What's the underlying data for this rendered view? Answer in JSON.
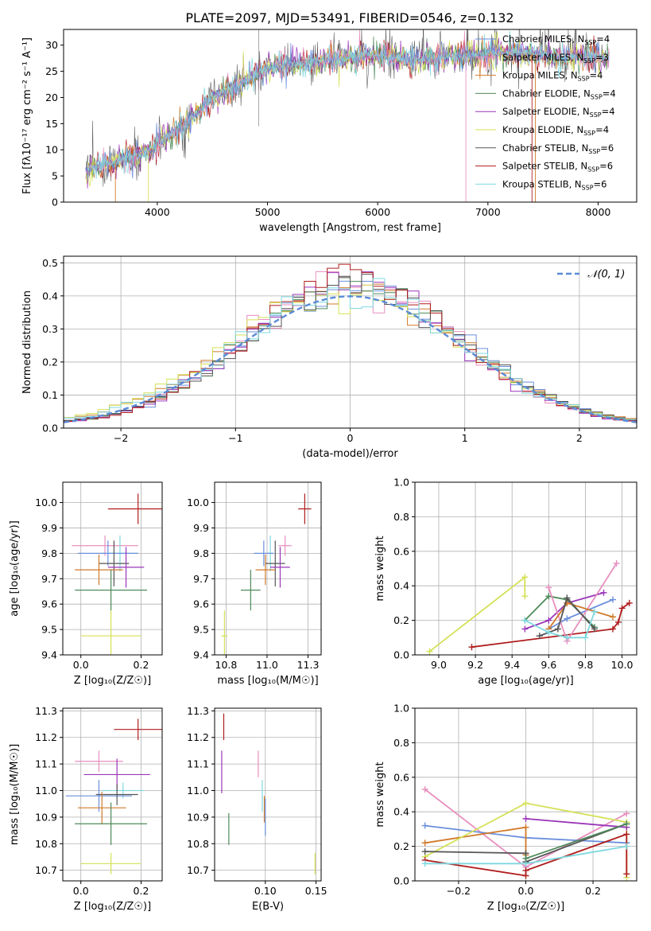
{
  "figure_title": "PLATE=2097, MJD=53491, FIBERID=0546, z=0.132",
  "legend_entries": [
    {
      "label": "Chabrier MILES, N_SSP=4",
      "color": "#6a8fdc"
    },
    {
      "label": "Salpeter MILES, N_SSP=3",
      "color": "#e88fbf"
    },
    {
      "label": "Kroupa MILES, N_SSP=4",
      "color": "#d07a2a"
    },
    {
      "label": "Chabrier ELODIE, N_SSP=4",
      "color": "#4e8a5a"
    },
    {
      "label": "Salpeter ELODIE, N_SSP=4",
      "color": "#9a35b8"
    },
    {
      "label": "Kroupa ELODIE, N_SSP=4",
      "color": "#d4e157"
    },
    {
      "label": "Chabrier STELIB, N_SSP=6",
      "color": "#555555"
    },
    {
      "label": "Salpeter STELIB, N_SSP=6",
      "color": "#b01c1c"
    },
    {
      "label": "Kroupa STELIB, N_SSP=6",
      "color": "#7fd8e0"
    }
  ],
  "chart_data": [
    {
      "id": "spectrum",
      "type": "line",
      "xlabel": "wavelength [Angstrom, rest frame]",
      "ylabel": "Flux [fλ10⁻¹⁷ erg cm⁻² s⁻¹ A⁻¹]",
      "xlim": [
        3150,
        8350
      ],
      "ylim": [
        0,
        33
      ],
      "xticks": [
        4000,
        5000,
        6000,
        7000,
        8000
      ],
      "yticks": [
        0,
        5,
        10,
        15,
        20,
        25,
        30
      ],
      "grid": false,
      "legend": "top-right",
      "continuum": [
        [
          3350,
          6.5
        ],
        [
          3600,
          7.5
        ],
        [
          3800,
          9
        ],
        [
          3950,
          10
        ],
        [
          4050,
          12
        ],
        [
          4200,
          14
        ],
        [
          4350,
          17
        ],
        [
          4500,
          20
        ],
        [
          4700,
          22
        ],
        [
          4900,
          24.5
        ],
        [
          5100,
          26
        ],
        [
          5300,
          26.5
        ],
        [
          5500,
          27
        ],
        [
          5700,
          27.5
        ],
        [
          5900,
          28
        ],
        [
          6100,
          28
        ],
        [
          6300,
          27
        ],
        [
          6500,
          27.5
        ],
        [
          6700,
          28
        ],
        [
          6900,
          28
        ],
        [
          7100,
          28.5
        ],
        [
          7300,
          28.5
        ],
        [
          7500,
          28
        ],
        [
          7700,
          27.5
        ],
        [
          7900,
          28
        ],
        [
          8100,
          27.5
        ]
      ],
      "fit_range": [
        3350,
        8100
      ]
    },
    {
      "id": "residual-histogram",
      "type": "bar",
      "xlabel": "(data-model)/error",
      "ylabel": "Normed distribution",
      "xlim": [
        -2.5,
        2.5
      ],
      "ylim": [
        0,
        0.52
      ],
      "xticks": [
        -2,
        -1,
        0,
        1,
        2
      ],
      "yticks": [
        0.0,
        0.1,
        0.2,
        0.3,
        0.4,
        0.5
      ],
      "grid": true,
      "legend": "top-right",
      "reference_curve": {
        "label": "𝒩(0, 1)",
        "mean": 0,
        "sigma": 1,
        "color": "#5b8bd6"
      },
      "bin_width": 0.1,
      "n_histograms": 9
    },
    {
      "id": "age-vs-metallicity",
      "type": "scatter",
      "xlabel": "Z [log₁₀(Z/Z☉)]",
      "ylabel": "age  [log₁₀(age/yr)]",
      "xlim": [
        -0.06,
        0.27
      ],
      "ylim": [
        9.4,
        10.08
      ],
      "xticks": [
        0.0,
        0.2
      ],
      "yticks": [
        9.4,
        9.5,
        9.6,
        9.7,
        9.8,
        9.9,
        10.0
      ],
      "grid": true,
      "points": [
        {
          "x": 0.19,
          "y": 9.975,
          "xerr": 0.1,
          "yerr": 0.06,
          "c": 7
        },
        {
          "x": 0.08,
          "y": 9.83,
          "xerr": 0.11,
          "yerr": 0.04,
          "c": 1
        },
        {
          "x": 0.13,
          "y": 9.8,
          "xerr": 0.06,
          "yerr": 0.07,
          "c": 8
        },
        {
          "x": 0.09,
          "y": 9.8,
          "xerr": 0.1,
          "yerr": 0.05,
          "c": 0
        },
        {
          "x": 0.11,
          "y": 9.76,
          "xerr": 0.05,
          "yerr": 0.09,
          "c": 6
        },
        {
          "x": 0.15,
          "y": 9.745,
          "xerr": 0.06,
          "yerr": 0.08,
          "c": 4
        },
        {
          "x": 0.06,
          "y": 9.735,
          "xerr": 0.08,
          "yerr": 0.06,
          "c": 2
        },
        {
          "x": 0.1,
          "y": 9.655,
          "xerr": 0.12,
          "yerr": 0.08,
          "c": 3
        },
        {
          "x": 0.1,
          "y": 9.475,
          "xerr": 0.1,
          "yerr": 0.1,
          "c": 5
        }
      ]
    },
    {
      "id": "age-vs-mass",
      "type": "scatter",
      "xlabel": "mass [log₁₀(M/M☉)]",
      "ylabel": "",
      "xlim": [
        10.68,
        11.33
      ],
      "ylim": [
        9.4,
        10.08
      ],
      "xticks": [
        10.75,
        11.0,
        11.25
      ],
      "yticks": [
        9.4,
        9.5,
        9.6,
        9.7,
        9.8,
        9.9,
        10.0
      ],
      "grid": true,
      "points": [
        {
          "x": 11.23,
          "y": 9.975,
          "xerr": 0.04,
          "yerr": 0.06,
          "c": 7
        },
        {
          "x": 11.11,
          "y": 9.83,
          "xerr": 0.04,
          "yerr": 0.04,
          "c": 1
        },
        {
          "x": 11.02,
          "y": 9.8,
          "xerr": 0.02,
          "yerr": 0.07,
          "c": 8
        },
        {
          "x": 10.98,
          "y": 9.8,
          "xerr": 0.06,
          "yerr": 0.05,
          "c": 0
        },
        {
          "x": 11.05,
          "y": 9.76,
          "xerr": 0.06,
          "yerr": 0.09,
          "c": 6
        },
        {
          "x": 11.08,
          "y": 9.745,
          "xerr": 0.06,
          "yerr": 0.08,
          "c": 4
        },
        {
          "x": 10.99,
          "y": 9.735,
          "xerr": 0.06,
          "yerr": 0.06,
          "c": 2
        },
        {
          "x": 10.9,
          "y": 9.655,
          "xerr": 0.06,
          "yerr": 0.08,
          "c": 3
        },
        {
          "x": 10.74,
          "y": 9.475,
          "xerr": 0.02,
          "yerr": 0.1,
          "c": 5
        }
      ]
    },
    {
      "id": "mass-weight-vs-age",
      "type": "line",
      "xlabel": "age  [log₁₀(age/yr)]",
      "ylabel": "mass weight",
      "xlim": [
        8.87,
        10.08
      ],
      "ylim": [
        0,
        1.0
      ],
      "xticks": [
        9.0,
        9.2,
        9.4,
        9.6,
        9.8,
        10.0
      ],
      "yticks": [
        0.0,
        0.2,
        0.4,
        0.6,
        0.8,
        1.0
      ],
      "grid": true,
      "series": [
        {
          "c": 5,
          "x": [
            8.95,
            9.47,
            9.47
          ],
          "y": [
            0.02,
            0.45,
            0.34
          ]
        },
        {
          "c": 7,
          "x": [
            9.18,
            9.95,
            9.98,
            10.0,
            10.04
          ],
          "y": [
            0.045,
            0.15,
            0.19,
            0.27,
            0.3
          ]
        },
        {
          "c": 3,
          "x": [
            9.47,
            9.6,
            9.7,
            9.85
          ],
          "y": [
            0.2,
            0.34,
            0.32,
            0.16
          ]
        },
        {
          "c": 4,
          "x": [
            9.47,
            9.6,
            9.7,
            9.9
          ],
          "y": [
            0.15,
            0.2,
            0.3,
            0.36
          ]
        },
        {
          "c": 0,
          "x": [
            9.6,
            9.7,
            9.95
          ],
          "y": [
            0.15,
            0.21,
            0.32
          ]
        },
        {
          "c": 1,
          "x": [
            9.6,
            9.7,
            9.97
          ],
          "y": [
            0.39,
            0.08,
            0.53
          ]
        },
        {
          "c": 2,
          "x": [
            9.6,
            9.7,
            9.95
          ],
          "y": [
            0.15,
            0.3,
            0.22
          ]
        },
        {
          "c": 6,
          "x": [
            9.55,
            9.65,
            9.7,
            9.85
          ],
          "y": [
            0.11,
            0.15,
            0.33,
            0.15
          ]
        },
        {
          "c": 8,
          "x": [
            9.47,
            9.6,
            9.7,
            9.8,
            9.85
          ],
          "y": [
            0.2,
            0.13,
            0.1,
            0.1,
            0.25
          ]
        }
      ]
    },
    {
      "id": "mass-vs-metallicity",
      "type": "scatter",
      "xlabel": "Z [log₁₀(Z/Z☉)]",
      "ylabel": "mass [log₁₀(M/M☉)]",
      "xlim": [
        -0.06,
        0.27
      ],
      "ylim": [
        10.66,
        11.31
      ],
      "xticks": [
        0.0,
        0.2
      ],
      "yticks": [
        10.7,
        10.8,
        10.9,
        11.0,
        11.1,
        11.2,
        11.3
      ],
      "grid": true,
      "points": [
        {
          "x": 0.19,
          "y": 11.23,
          "xerr": 0.08,
          "yerr": 0.04,
          "c": 7
        },
        {
          "x": 0.06,
          "y": 11.11,
          "xerr": 0.08,
          "yerr": 0.04,
          "c": 1
        },
        {
          "x": 0.12,
          "y": 11.06,
          "xerr": 0.11,
          "yerr": 0.06,
          "c": 4
        },
        {
          "x": 0.14,
          "y": 11.0,
          "xerr": 0.07,
          "yerr": 0.03,
          "c": 8
        },
        {
          "x": 0.06,
          "y": 10.98,
          "xerr": 0.11,
          "yerr": 0.06,
          "c": 0
        },
        {
          "x": 0.12,
          "y": 10.985,
          "xerr": 0.07,
          "yerr": 0.04,
          "c": 6
        },
        {
          "x": 0.07,
          "y": 10.935,
          "xerr": 0.08,
          "yerr": 0.06,
          "c": 2
        },
        {
          "x": 0.1,
          "y": 10.875,
          "xerr": 0.12,
          "yerr": 0.08,
          "c": 3
        },
        {
          "x": 0.1,
          "y": 10.725,
          "xerr": 0.1,
          "yerr": 0.04,
          "c": 5
        }
      ]
    },
    {
      "id": "mass-vs-extinction",
      "type": "scatter",
      "xlabel": "E(B-V)",
      "ylabel": "",
      "xlim": [
        0.05,
        0.155
      ],
      "ylim": [
        10.66,
        11.31
      ],
      "xticks": [
        0.1,
        0.15
      ],
      "yticks": [
        10.7,
        10.8,
        10.9,
        11.0,
        11.1,
        11.2,
        11.3
      ],
      "grid": true,
      "points": [
        {
          "x": 0.059,
          "y": 11.24,
          "xerr": 0,
          "yerr": 0.05,
          "c": 7
        },
        {
          "x": 0.057,
          "y": 11.07,
          "xerr": 0,
          "yerr": 0.08,
          "c": 4
        },
        {
          "x": 0.093,
          "y": 11.1,
          "xerr": 0,
          "yerr": 0.05,
          "c": 1
        },
        {
          "x": 0.097,
          "y": 10.98,
          "xerr": 0,
          "yerr": 0.06,
          "c": 8
        },
        {
          "x": 0.099,
          "y": 10.93,
          "xerr": 0,
          "yerr": 0.05,
          "c": 2
        },
        {
          "x": 0.1,
          "y": 10.9,
          "xerr": 0,
          "yerr": 0.07,
          "c": 0
        },
        {
          "x": 0.064,
          "y": 10.855,
          "xerr": 0,
          "yerr": 0.06,
          "c": 3
        },
        {
          "x": 0.149,
          "y": 10.725,
          "xerr": 0,
          "yerr": 0.04,
          "c": 5
        }
      ]
    },
    {
      "id": "mass-weight-vs-metallicity",
      "type": "line",
      "xlabel": "Z [log₁₀(Z/Z☉)]",
      "ylabel": "mass weight",
      "xlim": [
        -0.33,
        0.33
      ],
      "ylim": [
        0,
        1.0
      ],
      "xticks": [
        -0.2,
        0.0,
        0.2
      ],
      "yticks": [
        0.0,
        0.2,
        0.4,
        0.6,
        0.8,
        1.0
      ],
      "grid": true,
      "series": [
        {
          "c": 1,
          "x": [
            -0.3,
            0.0,
            0.3
          ],
          "y": [
            0.53,
            0.08,
            0.39
          ]
        },
        {
          "c": 0,
          "x": [
            -0.3,
            0.0,
            0.3
          ],
          "y": [
            0.32,
            0.25,
            0.22
          ]
        },
        {
          "c": 2,
          "x": [
            -0.3,
            0.0,
            0.0
          ],
          "y": [
            0.22,
            0.31,
            0.15
          ]
        },
        {
          "c": 5,
          "x": [
            -0.3,
            0.0,
            0.3,
            0.3
          ],
          "y": [
            0.14,
            0.45,
            0.34,
            0.02
          ]
        },
        {
          "c": 6,
          "x": [
            -0.3,
            0.0,
            0.0,
            0.3
          ],
          "y": [
            0.17,
            0.16,
            0.11,
            0.33
          ]
        },
        {
          "c": 7,
          "x": [
            -0.3,
            0.0,
            0.0,
            0.3,
            0.3
          ],
          "y": [
            0.12,
            0.03,
            0.06,
            0.27,
            0.04
          ]
        },
        {
          "c": 8,
          "x": [
            -0.3,
            0.0,
            0.3
          ],
          "y": [
            0.1,
            0.1,
            0.2
          ]
        },
        {
          "c": 4,
          "x": [
            0.0,
            0.3
          ],
          "y": [
            0.36,
            0.31
          ]
        },
        {
          "c": 3,
          "x": [
            0.0,
            0.3
          ],
          "y": [
            0.13,
            0.33
          ]
        }
      ]
    }
  ]
}
